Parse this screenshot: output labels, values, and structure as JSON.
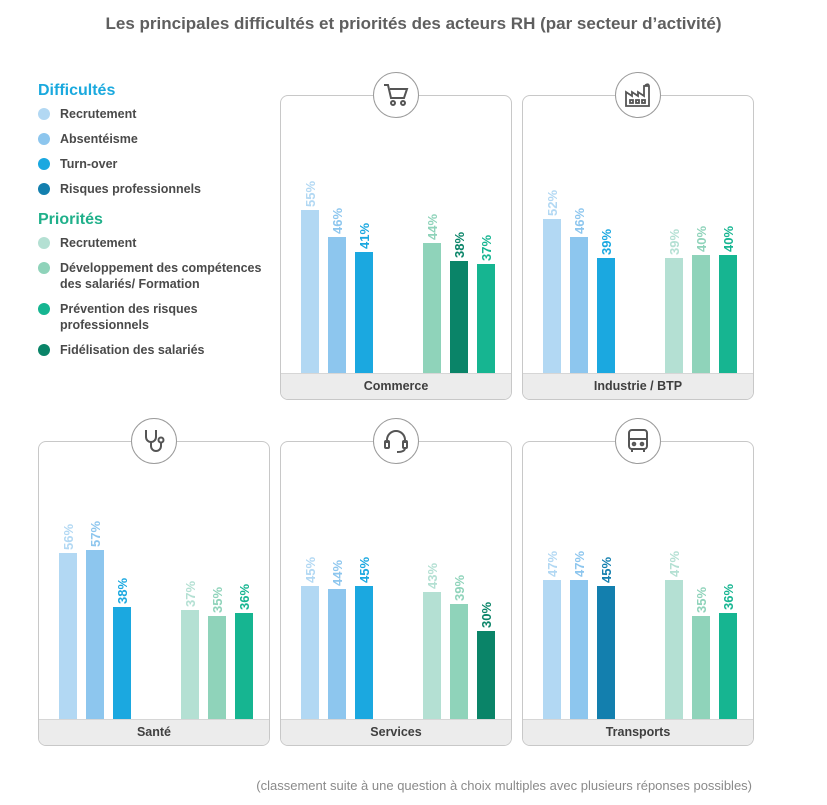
{
  "title": "Les principales difficultés et priorités des acteurs RH (par secteur d’activité)",
  "footnote": "(classement suite à une question à choix multiples avec plusieurs réponses possibles)",
  "legend": {
    "difficultes_title": "Difficultés",
    "difficultes": [
      {
        "label": "Recrutement",
        "color": "#b2d8f3"
      },
      {
        "label": "Absentéisme",
        "color": "#8dc6ee"
      },
      {
        "label": "Turn-over",
        "color": "#1ba8e0"
      },
      {
        "label": "Risques professionnels",
        "color": "#137fae"
      }
    ],
    "priorites_title": "Priorités",
    "priorites": [
      {
        "label": "Recrutement",
        "color": "#b4e0d3"
      },
      {
        "label": "Développement des compétences des salariés/ Formation",
        "color": "#8fd3ba"
      },
      {
        "label": "Prévention des risques professionnels",
        "color": "#16b591"
      },
      {
        "label": "Fidélisation des salariés",
        "color": "#0a8468"
      }
    ]
  },
  "chart_data": [
    {
      "type": "bar",
      "title": "Commerce",
      "icon": "cart-icon",
      "difficultes": [
        {
          "key": "Recrutement",
          "value": 55,
          "label": "55%"
        },
        {
          "key": "Absentéisme",
          "value": 46,
          "label": "46%"
        },
        {
          "key": "Turn-over",
          "value": 41,
          "label": "41%"
        }
      ],
      "priorites": [
        {
          "key": "Développement des compétences des salariés/ Formation",
          "value": 44,
          "label": "44%"
        },
        {
          "key": "Fidélisation des salariés",
          "value": 38,
          "label": "38%"
        },
        {
          "key": "Prévention des risques professionnels",
          "value": 37,
          "label": "37%"
        }
      ]
    },
    {
      "type": "bar",
      "title": "Industrie / BTP",
      "icon": "factory-icon",
      "difficultes": [
        {
          "key": "Recrutement",
          "value": 52,
          "label": "52%"
        },
        {
          "key": "Absentéisme",
          "value": 46,
          "label": "46%"
        },
        {
          "key": "Turn-over",
          "value": 39,
          "label": "39%"
        }
      ],
      "priorites": [
        {
          "key": "Recrutement",
          "value": 39,
          "label": "39%"
        },
        {
          "key": "Développement des compétences des salariés/ Formation",
          "value": 40,
          "label": "40%"
        },
        {
          "key": "Prévention des risques professionnels",
          "value": 40,
          "label": "40%"
        }
      ]
    },
    {
      "type": "bar",
      "title": "Santé",
      "icon": "stethoscope-icon",
      "difficultes": [
        {
          "key": "Recrutement",
          "value": 56,
          "label": "56%"
        },
        {
          "key": "Absentéisme",
          "value": 57,
          "label": "57%"
        },
        {
          "key": "Turn-over",
          "value": 38,
          "label": "38%"
        }
      ],
      "priorites": [
        {
          "key": "Recrutement",
          "value": 37,
          "label": "37%"
        },
        {
          "key": "Développement des compétences des salariés/ Formation",
          "value": 35,
          "label": "35%"
        },
        {
          "key": "Prévention des risques professionnels",
          "value": 36,
          "label": "36%"
        }
      ]
    },
    {
      "type": "bar",
      "title": "Services",
      "icon": "headset-icon",
      "difficultes": [
        {
          "key": "Recrutement",
          "value": 45,
          "label": "45%"
        },
        {
          "key": "Absentéisme",
          "value": 44,
          "label": "44%"
        },
        {
          "key": "Turn-over",
          "value": 45,
          "label": "45%"
        }
      ],
      "priorites": [
        {
          "key": "Recrutement",
          "value": 43,
          "label": "43%"
        },
        {
          "key": "Développement des compétences des salariés/ Formation",
          "value": 39,
          "label": "39%"
        },
        {
          "key": "Fidélisation des salariés",
          "value": 30,
          "label": "30%"
        }
      ]
    },
    {
      "type": "bar",
      "title": "Transports",
      "icon": "bus-icon",
      "difficultes": [
        {
          "key": "Recrutement",
          "value": 47,
          "label": "47%"
        },
        {
          "key": "Absentéisme",
          "value": 47,
          "label": "47%"
        },
        {
          "key": "Risques professionnels",
          "value": 45,
          "label": "45%"
        }
      ],
      "priorites": [
        {
          "key": "Recrutement",
          "value": 47,
          "label": "47%"
        },
        {
          "key": "Développement des compétences des salariés/ Formation",
          "value": 35,
          "label": "35%"
        },
        {
          "key": "Prévention des risques professionnels",
          "value": 36,
          "label": "36%"
        }
      ]
    }
  ]
}
